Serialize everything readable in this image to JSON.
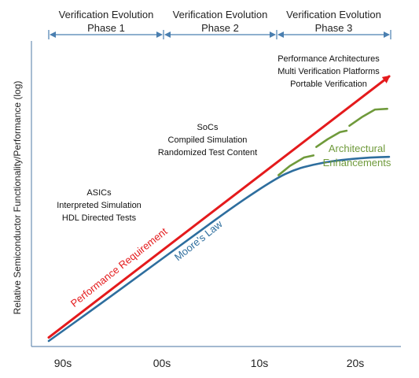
{
  "chart_data": {
    "type": "line",
    "ylabel": "Relative Semiconductor Functionality/Performance (log)",
    "xlabel": "",
    "x_ticks": [
      "90s",
      "00s",
      "10s",
      "20s"
    ],
    "phases": [
      {
        "line1": "Verification Evolution",
        "line2": "Phase 1"
      },
      {
        "line1": "Verification Evolution",
        "line2": "Phase 2"
      },
      {
        "line1": "Verification Evolution",
        "line2": "Phase 3"
      }
    ],
    "text_blocks": [
      {
        "lines": [
          "ASICs",
          "Interpreted Simulation",
          "HDL Directed Tests"
        ]
      },
      {
        "lines": [
          "SoCs",
          "Compiled Simulation",
          "Randomized Test Content"
        ]
      },
      {
        "lines": [
          "Performance Architectures",
          "Multi Verification Platforms",
          "Portable Verification"
        ]
      }
    ],
    "series": [
      {
        "name": "Performance Requirement",
        "color": "#e41a1c",
        "x": [
          0,
          3.6
        ],
        "y": [
          0.05,
          3.75
        ]
      },
      {
        "name": "Moore's Law",
        "color": "#2e6e9e",
        "x": [
          0,
          0.5,
          1.0,
          1.5,
          2.0,
          2.4,
          2.6,
          2.8,
          3.0,
          3.2,
          3.4,
          3.6
        ],
        "y": [
          0.0,
          0.48,
          0.97,
          1.46,
          1.95,
          2.3,
          2.43,
          2.5,
          2.55,
          2.58,
          2.6,
          2.61
        ]
      }
    ],
    "enhancements": {
      "label_lines": [
        "Architectural",
        "Enhancements"
      ],
      "color": "#6f9a3b",
      "segments": [
        {
          "x": [
            2.43,
            2.55,
            2.7,
            2.8
          ],
          "y": [
            2.35,
            2.48,
            2.6,
            2.63
          ]
        },
        {
          "x": [
            2.83,
            2.95,
            3.08,
            3.15
          ],
          "y": [
            2.75,
            2.86,
            2.96,
            2.98
          ]
        },
        {
          "x": [
            3.18,
            3.32,
            3.45,
            3.58
          ],
          "y": [
            3.05,
            3.18,
            3.28,
            3.29
          ]
        }
      ]
    }
  }
}
